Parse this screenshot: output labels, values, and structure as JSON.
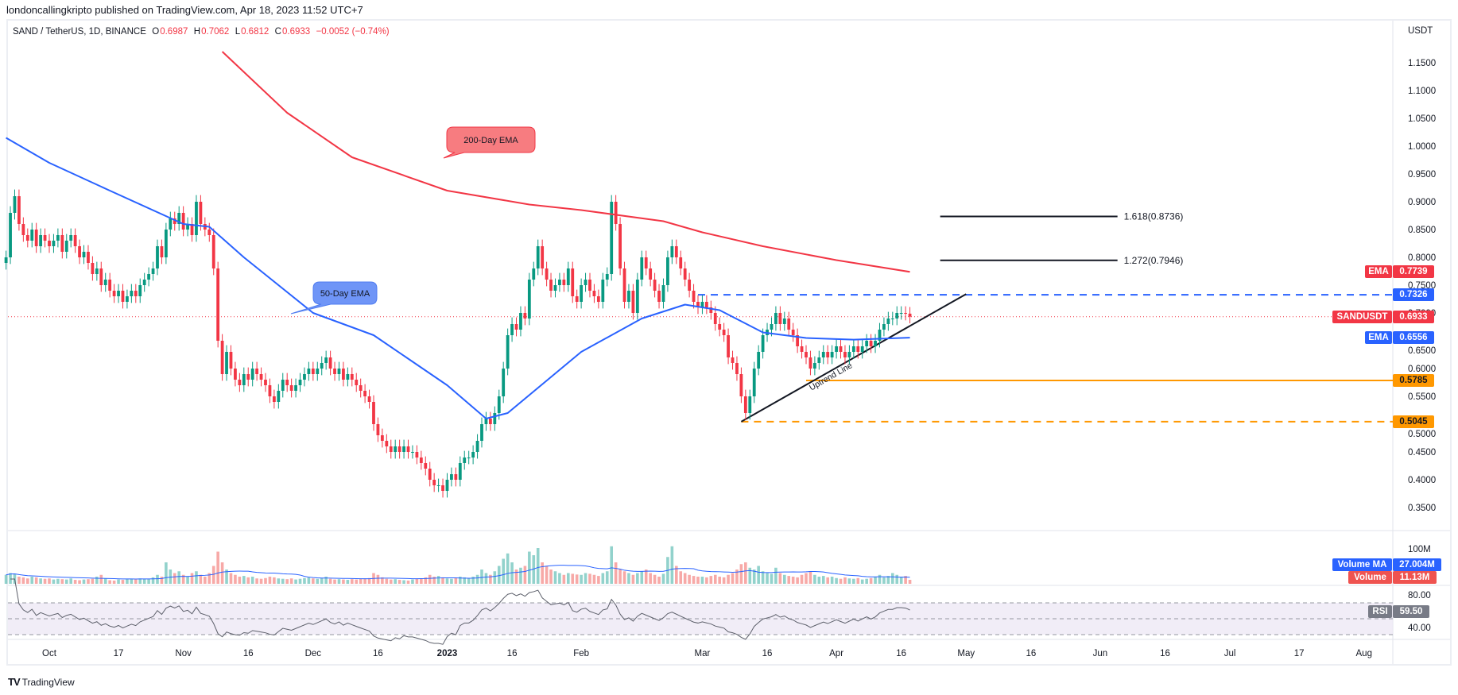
{
  "header": {
    "published": "londoncallingkripto published on TradingView.com, Apr 18, 2023 11:52 UTC+7"
  },
  "legend": {
    "symbol": "SAND / TetherUS, 1D, BINANCE",
    "o_label": "O",
    "o": "0.6987",
    "h_label": "H",
    "h": "0.7062",
    "l_label": "L",
    "l": "0.6812",
    "c_label": "C",
    "c": "0.6933",
    "change": "−0.0052 (−0.74%)"
  },
  "footer": {
    "brand": "TradingView"
  },
  "colors": {
    "up": "#089981",
    "down": "#f23645",
    "ema50": "#2962ff",
    "ema200": "#f23645",
    "orange": "#ff9800",
    "rsi_band": "#ede8f5"
  },
  "chart_data": {
    "type": "candlestick",
    "interval": "1D",
    "currency": "USDT",
    "ylim": [
      0.31,
      1.19
    ],
    "y_ticks": [
      "1.1500",
      "1.1000",
      "1.0500",
      "1.0000",
      "0.9500",
      "0.9000",
      "0.8500",
      "0.8000",
      "0.7500",
      "0.7000",
      "0.6500",
      "0.6000",
      "0.5500",
      "0.5000",
      "0.4500",
      "0.4000",
      "0.3500"
    ],
    "x_ticks": [
      {
        "label": "Oct",
        "date": "2022-10-01"
      },
      {
        "label": "17",
        "date": "2022-10-17"
      },
      {
        "label": "Nov",
        "date": "2022-11-01"
      },
      {
        "label": "16",
        "date": "2022-11-16"
      },
      {
        "label": "Dec",
        "date": "2022-12-01"
      },
      {
        "label": "16",
        "date": "2022-12-16"
      },
      {
        "label": "2023",
        "date": "2023-01-01"
      },
      {
        "label": "16",
        "date": "2023-01-16"
      },
      {
        "label": "Feb",
        "date": "2023-02-01"
      },
      {
        "label": "Mar",
        "date": "2023-03-01"
      },
      {
        "label": "16",
        "date": "2023-03-16"
      },
      {
        "label": "Apr",
        "date": "2023-04-01"
      },
      {
        "label": "16",
        "date": "2023-04-16"
      },
      {
        "label": "May",
        "date": "2023-05-01"
      },
      {
        "label": "16",
        "date": "2023-05-16"
      },
      {
        "label": "Jun",
        "date": "2023-06-01"
      },
      {
        "label": "16",
        "date": "2023-06-16"
      },
      {
        "label": "Jul",
        "date": "2023-07-01"
      },
      {
        "label": "17",
        "date": "2023-07-17"
      },
      {
        "label": "Aug",
        "date": "2023-08-01"
      }
    ],
    "daily": [
      {
        "month": "2022-09",
        "first_day": 21,
        "close": [
          0.8,
          0.88,
          0.91,
          0.86,
          0.84,
          0.83,
          0.85,
          0.82,
          0.84,
          0.83
        ],
        "volume": [
          25,
          30,
          28,
          20,
          18,
          15,
          20,
          18,
          15,
          14
        ]
      },
      {
        "month": "2022-10",
        "first_day": 1,
        "close": [
          0.82,
          0.83,
          0.84,
          0.81,
          0.83,
          0.84,
          0.82,
          0.8,
          0.81,
          0.79,
          0.77,
          0.78,
          0.75,
          0.76,
          0.74,
          0.73,
          0.74,
          0.72,
          0.73,
          0.74,
          0.73,
          0.75,
          0.76,
          0.77,
          0.78,
          0.82,
          0.8,
          0.85,
          0.87,
          0.86,
          0.88
        ],
        "volume": [
          15,
          12,
          14,
          13,
          12,
          15,
          11,
          10,
          12,
          13,
          14,
          20,
          25,
          15,
          10,
          9,
          12,
          11,
          13,
          14,
          12,
          15,
          14,
          13,
          18,
          25,
          20,
          60,
          40,
          30,
          35
        ]
      },
      {
        "month": "2022-11",
        "first_day": 1,
        "close": [
          0.85,
          0.86,
          0.84,
          0.9,
          0.86,
          0.85,
          0.84,
          0.78,
          0.65,
          0.59,
          0.63,
          0.6,
          0.58,
          0.57,
          0.59,
          0.58,
          0.6,
          0.59,
          0.58,
          0.57,
          0.55,
          0.54,
          0.56,
          0.58,
          0.57,
          0.56,
          0.57,
          0.58,
          0.59,
          0.6
        ],
        "volume": [
          25,
          20,
          30,
          35,
          25,
          20,
          30,
          50,
          90,
          60,
          40,
          30,
          25,
          20,
          22,
          18,
          20,
          15,
          14,
          16,
          20,
          18,
          15,
          14,
          13,
          15,
          12,
          14,
          16,
          18
        ]
      },
      {
        "month": "2022-12",
        "first_day": 1,
        "close": [
          0.59,
          0.6,
          0.61,
          0.62,
          0.6,
          0.59,
          0.6,
          0.58,
          0.59,
          0.58,
          0.57,
          0.56,
          0.55,
          0.54,
          0.5,
          0.48,
          0.47,
          0.46,
          0.45,
          0.46,
          0.45,
          0.46,
          0.45,
          0.45,
          0.44,
          0.43,
          0.42,
          0.4,
          0.39,
          0.39,
          0.38
        ],
        "volume": [
          15,
          14,
          16,
          20,
          14,
          12,
          13,
          12,
          11,
          13,
          12,
          14,
          15,
          16,
          30,
          25,
          18,
          14,
          12,
          13,
          11,
          10,
          9,
          12,
          14,
          15,
          18,
          25,
          20,
          22,
          18
        ]
      },
      {
        "month": "2023-01",
        "first_day": 1,
        "close": [
          0.4,
          0.41,
          0.4,
          0.43,
          0.44,
          0.44,
          0.45,
          0.47,
          0.5,
          0.51,
          0.5,
          0.52,
          0.55,
          0.6,
          0.66,
          0.68,
          0.67,
          0.7,
          0.69,
          0.76,
          0.78,
          0.82,
          0.78,
          0.76,
          0.74,
          0.75,
          0.76,
          0.75,
          0.78,
          0.73,
          0.72
        ],
        "volume": [
          15,
          14,
          16,
          20,
          18,
          15,
          20,
          25,
          40,
          30,
          25,
          35,
          50,
          70,
          85,
          60,
          40,
          45,
          50,
          90,
          80,
          100,
          60,
          50,
          40,
          35,
          30,
          25,
          30,
          28,
          26
        ]
      },
      {
        "month": "2023-02",
        "first_day": 1,
        "close": [
          0.75,
          0.76,
          0.74,
          0.73,
          0.72,
          0.76,
          0.77,
          0.9,
          0.86,
          0.78,
          0.72,
          0.74,
          0.7,
          0.76,
          0.8,
          0.78,
          0.76,
          0.74,
          0.72,
          0.75,
          0.8,
          0.82,
          0.8,
          0.78,
          0.76,
          0.74,
          0.72,
          0.71
        ],
        "volume": [
          25,
          30,
          28,
          25,
          22,
          30,
          35,
          105,
          60,
          40,
          35,
          30,
          25,
          30,
          35,
          40,
          30,
          25,
          20,
          28,
          75,
          105,
          50,
          35,
          30,
          25,
          22,
          20
        ]
      },
      {
        "month": "2023-03",
        "first_day": 1,
        "close": [
          0.72,
          0.71,
          0.7,
          0.68,
          0.67,
          0.66,
          0.62,
          0.61,
          0.59,
          0.55,
          0.52,
          0.55,
          0.6,
          0.63,
          0.66,
          0.67,
          0.68,
          0.7,
          0.68,
          0.69,
          0.67,
          0.66,
          0.64,
          0.63,
          0.62,
          0.6,
          0.61,
          0.62,
          0.63,
          0.62,
          0.63
        ],
        "volume": [
          20,
          18,
          22,
          25,
          20,
          18,
          25,
          30,
          40,
          55,
          60,
          45,
          40,
          50,
          35,
          30,
          28,
          45,
          30,
          25,
          22,
          20,
          18,
          25,
          30,
          35,
          25,
          20,
          22,
          18,
          20
        ]
      },
      {
        "month": "2023-04",
        "first_day": 1,
        "close": [
          0.64,
          0.63,
          0.62,
          0.63,
          0.64,
          0.63,
          0.64,
          0.65,
          0.64,
          0.65,
          0.67,
          0.68,
          0.69,
          0.69,
          0.7,
          0.7,
          0.6987,
          0.6933
        ],
        "volume": [
          16,
          14,
          18,
          15,
          14,
          16,
          12,
          14,
          16,
          20,
          25,
          18,
          22,
          30,
          25,
          20,
          22,
          11.13
        ]
      }
    ],
    "ema50": [
      [
        "2022-09-21",
        1.015
      ],
      [
        "2022-10-01",
        0.97
      ],
      [
        "2022-10-15",
        0.92
      ],
      [
        "2022-11-01",
        0.86
      ],
      [
        "2022-11-07",
        0.855
      ],
      [
        "2022-11-15",
        0.8
      ],
      [
        "2022-12-01",
        0.7
      ],
      [
        "2022-12-15",
        0.66
      ],
      [
        "2023-01-01",
        0.57
      ],
      [
        "2023-01-10",
        0.51
      ],
      [
        "2023-01-15",
        0.52
      ],
      [
        "2023-02-01",
        0.63
      ],
      [
        "2023-02-15",
        0.69
      ],
      [
        "2023-02-25",
        0.715
      ],
      [
        "2023-03-05",
        0.705
      ],
      [
        "2023-03-15",
        0.665
      ],
      [
        "2023-03-25",
        0.655
      ],
      [
        "2023-04-05",
        0.652
      ],
      [
        "2023-04-18",
        0.6556
      ]
    ],
    "ema200": [
      [
        "2022-11-10",
        1.17
      ],
      [
        "2022-11-25",
        1.06
      ],
      [
        "2022-12-10",
        0.98
      ],
      [
        "2023-01-01",
        0.92
      ],
      [
        "2023-01-20",
        0.895
      ],
      [
        "2023-02-01",
        0.885
      ],
      [
        "2023-02-20",
        0.865
      ],
      [
        "2023-03-01",
        0.845
      ],
      [
        "2023-03-15",
        0.82
      ],
      [
        "2023-04-01",
        0.795
      ],
      [
        "2023-04-18",
        0.7739
      ]
    ],
    "annotations": {
      "ema200_callout": "200-Day EMA",
      "ema50_callout": "50-Day EMA",
      "fib_1618": {
        "label": "1.618(0.8736)",
        "price": 0.8736,
        "from": "2023-04-25",
        "to": "2023-06-05"
      },
      "fib_1272": {
        "label": "1.272(0.7946)",
        "price": 0.7946,
        "from": "2023-04-25",
        "to": "2023-06-05"
      },
      "resistance": {
        "price": 0.7326,
        "from": "2023-02-28",
        "style": "dashed"
      },
      "support_1": {
        "price": 0.5785,
        "from": "2023-03-25",
        "style": "solid"
      },
      "support_2": {
        "price": 0.5045,
        "from": "2023-03-10",
        "style": "dashed"
      },
      "uptrend": {
        "label": "Uptrend Line",
        "from": [
          "2023-03-10",
          0.5045
        ],
        "to": [
          "2023-05-01",
          0.734
        ]
      }
    },
    "price_tags": {
      "ema200": {
        "name": "EMA",
        "value": "0.7739"
      },
      "resistance": {
        "value": "0.7326"
      },
      "last": {
        "name": "SANDUSDT",
        "value": "0.6933"
      },
      "ema50": {
        "name": "EMA",
        "value": "0.6556"
      },
      "support_1": {
        "value": "0.5785"
      },
      "support_2": {
        "value": "0.5045"
      }
    },
    "volume_pane": {
      "tick": "100M",
      "ma_name": "Volume MA",
      "ma_value": "27.004M",
      "vol_name": "Volume",
      "vol_value": "11.13M"
    },
    "rsi_pane": {
      "ticks": [
        "80.00",
        "40.00"
      ],
      "name": "RSI",
      "value": "59.50",
      "bands": [
        30,
        70
      ]
    }
  }
}
